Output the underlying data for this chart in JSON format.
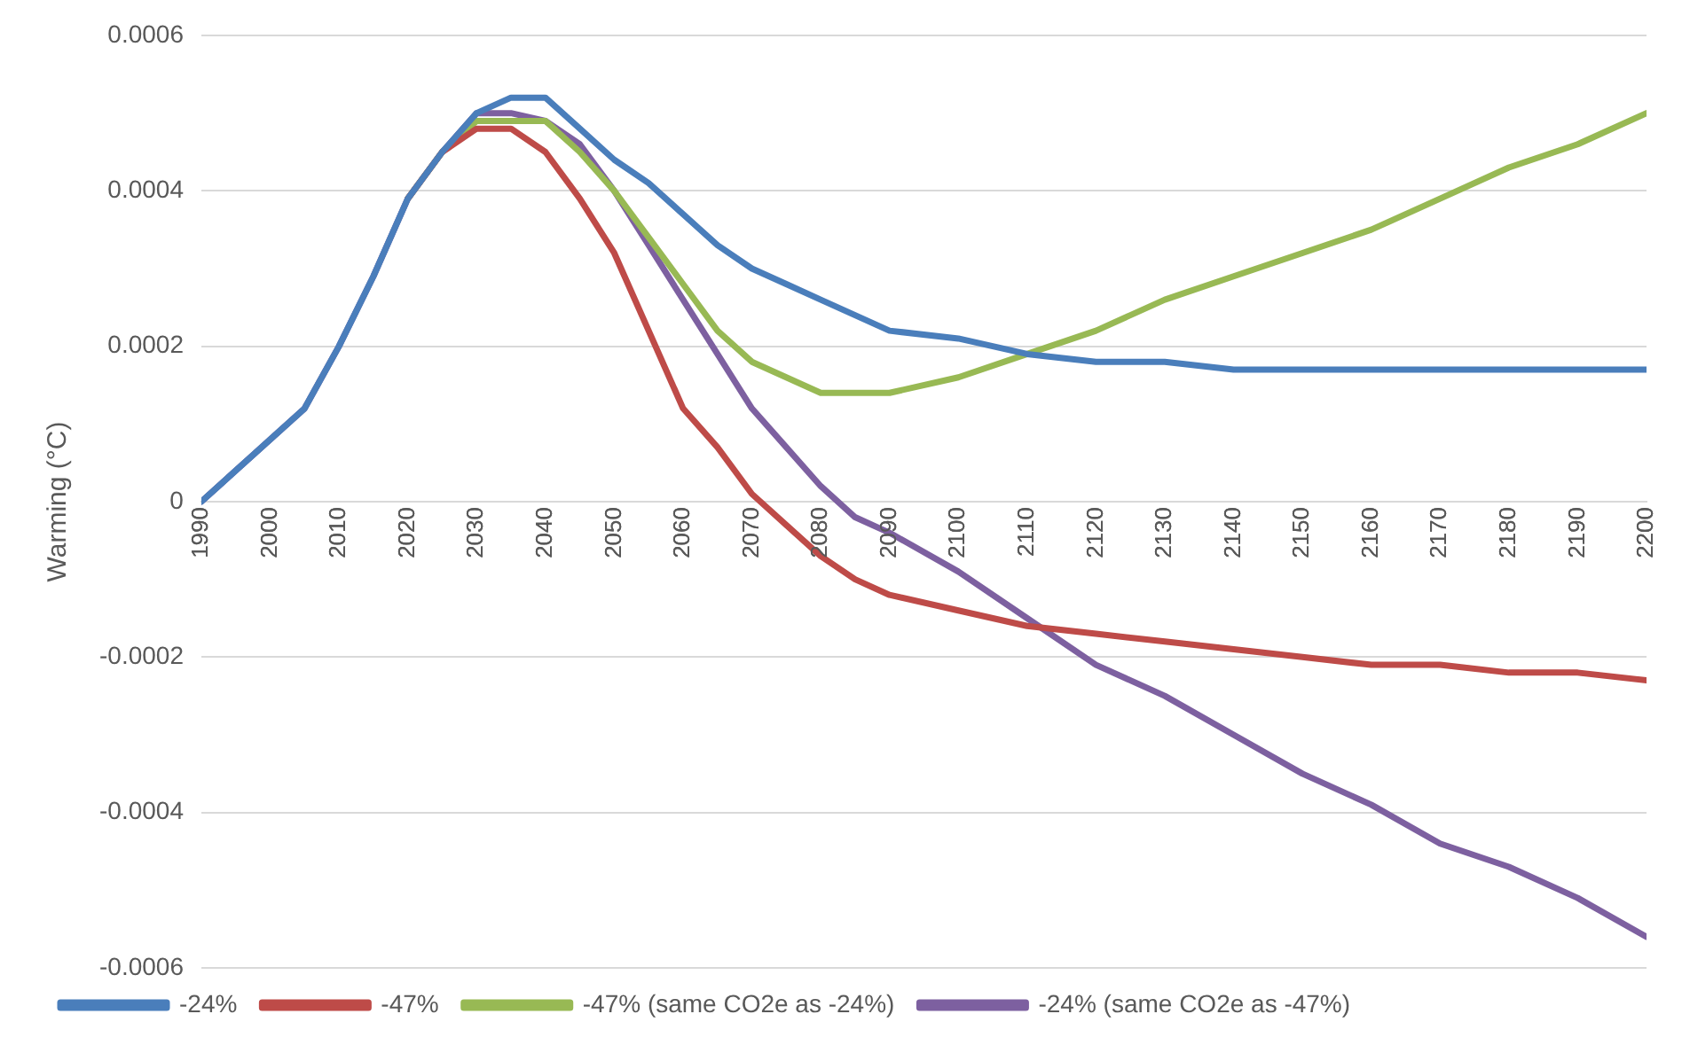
{
  "chart_data": {
    "type": "line",
    "ylabel": "Warming (°C)",
    "x": [
      1990,
      1995,
      2000,
      2005,
      2010,
      2015,
      2020,
      2025,
      2030,
      2035,
      2040,
      2045,
      2050,
      2055,
      2060,
      2065,
      2070,
      2075,
      2080,
      2085,
      2090,
      2100,
      2110,
      2120,
      2130,
      2140,
      2150,
      2160,
      2170,
      2180,
      2190,
      2200
    ],
    "xlim": [
      1990,
      2200
    ],
    "xticks": [
      1990,
      2000,
      2010,
      2020,
      2030,
      2040,
      2050,
      2060,
      2070,
      2080,
      2090,
      2100,
      2110,
      2120,
      2130,
      2140,
      2150,
      2160,
      2170,
      2180,
      2190,
      2200
    ],
    "ylim": [
      -0.0006,
      0.0006
    ],
    "yticks": [
      -0.0006,
      -0.0004,
      -0.0002,
      0,
      0.0002,
      0.0004,
      0.0006
    ],
    "grid": "y",
    "legend": "bottom",
    "marker": "none",
    "line_style": "solid",
    "series": [
      {
        "name": "-24%",
        "color": "#4a7ebb",
        "values": [
          0,
          4e-05,
          8e-05,
          0.00012,
          0.0002,
          0.00029,
          0.00039,
          0.00045,
          0.0005,
          0.00052,
          0.00052,
          0.00048,
          0.00044,
          0.00041,
          0.00037,
          0.00033,
          0.0003,
          0.00028,
          0.00026,
          0.00024,
          0.00022,
          0.00021,
          0.00019,
          0.00018,
          0.00018,
          0.00017,
          0.00017,
          0.00017,
          0.00017,
          0.00017,
          0.00017,
          0.00017
        ]
      },
      {
        "name": "-47%",
        "color": "#be4b48",
        "values": [
          null,
          null,
          null,
          null,
          null,
          null,
          0.00039,
          0.00045,
          0.00048,
          0.00048,
          0.00045,
          0.00039,
          0.00032,
          0.00022,
          0.00012,
          7e-05,
          1e-05,
          -3e-05,
          -7e-05,
          -0.0001,
          -0.00012,
          -0.00014,
          -0.00016,
          -0.00017,
          -0.00018,
          -0.00019,
          -0.0002,
          -0.00021,
          -0.00021,
          -0.00022,
          -0.00022,
          -0.00023
        ]
      },
      {
        "name": "-47% (same CO2e as -24%)",
        "color": "#98b954",
        "values": [
          null,
          null,
          null,
          null,
          null,
          null,
          0.00039,
          0.00045,
          0.00049,
          0.00049,
          0.00049,
          0.00045,
          0.0004,
          0.00034,
          0.00028,
          0.00022,
          0.00018,
          0.00016,
          0.00014,
          0.00014,
          0.00014,
          0.00016,
          0.00019,
          0.00022,
          0.00026,
          0.00029,
          0.00032,
          0.00035,
          0.00039,
          0.00043,
          0.00046,
          0.0005
        ]
      },
      {
        "name": "-24% (same CO2e as -47%)",
        "color": "#7d60a0",
        "values": [
          0,
          4e-05,
          8e-05,
          0.00012,
          0.0002,
          0.00029,
          0.00039,
          0.00045,
          0.0005,
          0.0005,
          0.00049,
          0.00046,
          0.0004,
          0.00033,
          0.00026,
          0.00019,
          0.00012,
          7e-05,
          2e-05,
          -2e-05,
          -4e-05,
          -9e-05,
          -0.00015,
          -0.00021,
          -0.00025,
          -0.0003,
          -0.00035,
          -0.00039,
          -0.00044,
          -0.00047,
          -0.00051,
          -0.00056
        ]
      }
    ]
  }
}
